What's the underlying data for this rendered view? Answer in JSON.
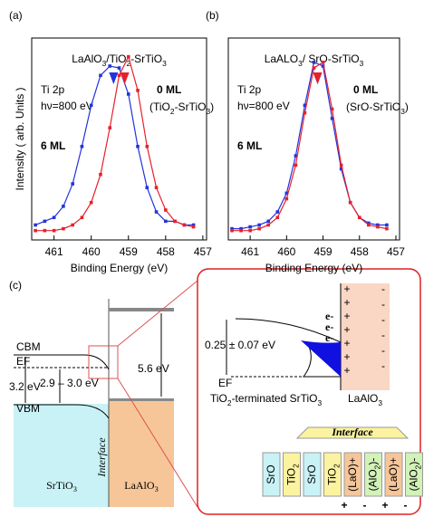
{
  "chart_data": [
    {
      "type": "line",
      "panel": "(a)",
      "title": "LaAlO3/TiO2-SrTiO3",
      "title_color": "#e8202a",
      "xlabel": "Binding Energy (eV)",
      "ylabel": "Intensity ( arb. Units )",
      "annotations": [
        "Ti 2p",
        "hν=800 eV",
        "0 ML",
        "(TiO2-SrTiO3)",
        "6 ML"
      ],
      "xlim": [
        461.6,
        456.9
      ],
      "xticks": [
        461,
        460,
        459,
        458,
        457
      ],
      "ylim": [
        0,
        1.08
      ],
      "x": [
        461.5,
        461.25,
        461,
        460.75,
        460.5,
        460.25,
        460,
        459.75,
        459.5,
        459.25,
        459,
        458.75,
        458.5,
        458.25,
        458,
        457.75,
        457.5,
        457.25
      ],
      "series": [
        {
          "name": "0 ML",
          "color": "#e8202a",
          "peak": 459.1,
          "values": [
            0.05,
            0.05,
            0.05,
            0.06,
            0.08,
            0.12,
            0.2,
            0.35,
            0.6,
            0.88,
            0.98,
            0.8,
            0.5,
            0.28,
            0.16,
            0.1,
            0.08,
            0.07
          ]
        },
        {
          "name": "6 ML",
          "color": "#2233dd",
          "peak": 459.4,
          "values": [
            0.08,
            0.1,
            0.12,
            0.18,
            0.3,
            0.5,
            0.72,
            0.88,
            0.93,
            0.92,
            0.78,
            0.5,
            0.28,
            0.15,
            0.1,
            0.1,
            0.08,
            0.08
          ]
        }
      ]
    },
    {
      "type": "line",
      "panel": "(b)",
      "title": "LaALO3/ SrO-SrTiO3",
      "title_color": "#2a55dd",
      "xlabel": "Binding Energy (eV)",
      "annotations": [
        "Ti 2p",
        "hν=800 eV",
        "0 ML",
        "(SrO-SrTiO3)",
        "6 ML"
      ],
      "xlim": [
        461.6,
        456.9
      ],
      "xticks": [
        461,
        460,
        459,
        458,
        457
      ],
      "ylim": [
        0,
        1.08
      ],
      "x": [
        461.5,
        461.25,
        461,
        460.75,
        460.5,
        460.25,
        460,
        459.75,
        459.5,
        459.25,
        459,
        458.75,
        458.5,
        458.25,
        458,
        457.75,
        457.5,
        457.25
      ],
      "series": [
        {
          "name": "0 ML",
          "color": "#e8202a",
          "peak": 459.15,
          "values": [
            0.05,
            0.05,
            0.05,
            0.06,
            0.08,
            0.12,
            0.22,
            0.4,
            0.68,
            0.92,
            0.95,
            0.7,
            0.4,
            0.2,
            0.12,
            0.08,
            0.07,
            0.06
          ]
        },
        {
          "name": "6 ML",
          "color": "#2233dd",
          "peak": 459.15,
          "values": [
            0.06,
            0.06,
            0.07,
            0.08,
            0.1,
            0.15,
            0.25,
            0.45,
            0.72,
            0.95,
            0.93,
            0.65,
            0.38,
            0.2,
            0.12,
            0.09,
            0.08,
            0.08
          ]
        }
      ]
    }
  ],
  "diagram": {
    "panel": "(c)",
    "left": {
      "cbm": "CBM",
      "ef": "EF",
      "gap": "3.2 eV",
      "offset": "2.9 – 3.0 eV",
      "vbm": "VBM",
      "substrate": "SrTiO3",
      "interface": "Interface",
      "film": "LaAlO3",
      "film_gap": "5.6 eV"
    },
    "inset": {
      "electrons": [
        "e-",
        "e-",
        "e-"
      ],
      "plus": [
        "+",
        "+",
        "+",
        "+",
        "+",
        "+",
        "+"
      ],
      "minus": [
        "-",
        "-",
        "-",
        "-",
        "-",
        "-"
      ],
      "bending": "0.25 ± 0.07 eV",
      "ef": "EF",
      "substrate": "TiO2-terminated SrTiO3",
      "film": "LaAlO3",
      "interface": "Interface",
      "layers": [
        "SrO",
        "TiO2",
        "SrO",
        "TiO2",
        "(LaO)+",
        "(AlO2)-",
        "(LaO)+",
        "(AlO2)-"
      ],
      "charges": [
        "+",
        "-",
        "+",
        "-"
      ]
    }
  }
}
